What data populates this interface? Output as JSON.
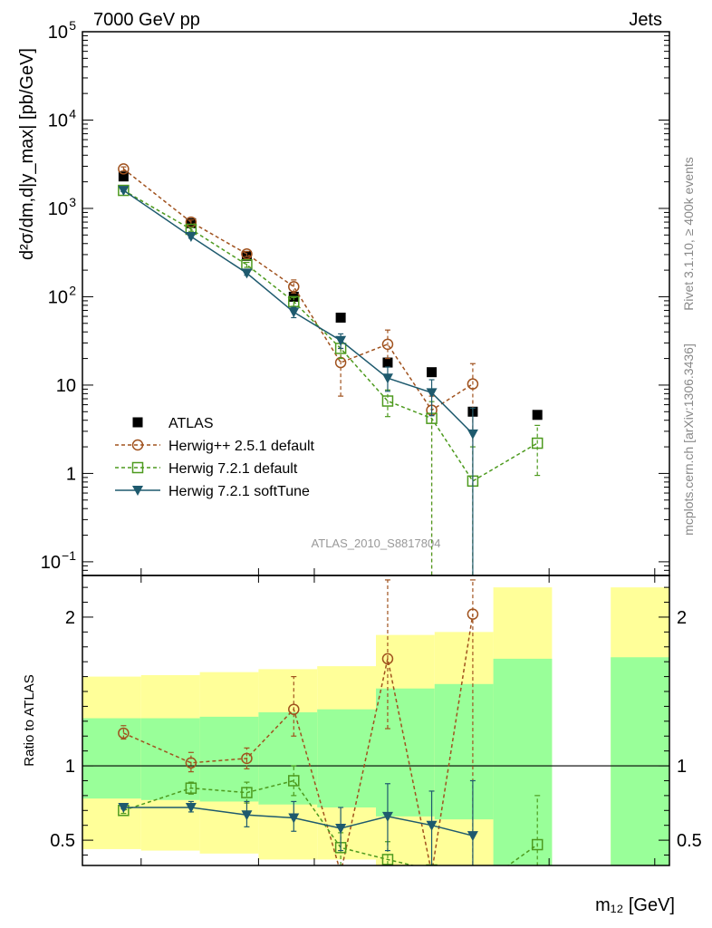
{
  "chart_data": [
    {
      "type": "line",
      "scale": "log",
      "header_left": "7000 GeV pp",
      "header_right": "Jets",
      "ylabel": "d²σ/dm,d|y_max| [pb/GeV]",
      "watermark": "ATLAS_2010_S8817804",
      "ylim": [
        0.07,
        100000
      ],
      "yticks": [
        {
          "value": 0.1,
          "base": "10",
          "exp": "−1",
          "plain": ""
        },
        {
          "value": 1,
          "base": "",
          "exp": "",
          "plain": "1"
        },
        {
          "value": 10,
          "base": "",
          "exp": "",
          "plain": "10"
        },
        {
          "value": 100,
          "base": "10",
          "exp": "2",
          "plain": ""
        },
        {
          "value": 1000,
          "base": "10",
          "exp": "3",
          "plain": ""
        },
        {
          "value": 10000,
          "base": "10",
          "exp": "4",
          "plain": ""
        },
        {
          "value": 100000,
          "base": "10",
          "exp": "5",
          "plain": ""
        }
      ],
      "bins": [
        {
          "lo": 0,
          "hi": 1
        },
        {
          "lo": 1,
          "hi": 2
        },
        {
          "lo": 2,
          "hi": 3
        },
        {
          "lo": 3,
          "hi": 4
        },
        {
          "lo": 4,
          "hi": 5
        },
        {
          "lo": 5,
          "hi": 6
        },
        {
          "lo": 6,
          "hi": 7
        },
        {
          "lo": 7,
          "hi": 8
        },
        {
          "lo": 8,
          "hi": 9
        },
        {
          "lo": 9,
          "hi": 10
        }
      ],
      "x": [
        0.7,
        1.85,
        2.8,
        3.6,
        4.4,
        5.2,
        5.95,
        6.65,
        7.75
      ],
      "series": [
        {
          "name": "ATLAS",
          "style": "data",
          "color": "#000000",
          "values": [
            2300,
            680,
            290,
            100,
            58,
            18,
            14,
            5,
            4.6
          ],
          "err_lo": [
            null,
            null,
            null,
            null,
            null,
            null,
            null,
            null,
            null
          ],
          "err_hi": [
            null,
            null,
            null,
            null,
            null,
            null,
            null,
            null,
            null
          ]
        },
        {
          "name": "Herwig++ 2.5.1 default",
          "style": "circle",
          "color": "#a0521e",
          "values": [
            2800,
            700,
            305,
            130,
            18,
            29,
            5.2,
            10.3,
            null
          ],
          "err_lo": [
            2650,
            660,
            285,
            110,
            7.5,
            20,
            0.06,
            0.06,
            null
          ],
          "err_hi": [
            2950,
            740,
            325,
            155,
            26,
            42,
            7.5,
            17.5,
            null
          ]
        },
        {
          "name": "Herwig 7.2.1 default",
          "style": "square",
          "color": "#4d9a1e",
          "values": [
            1600,
            580,
            230,
            88,
            26,
            6.6,
            4.2,
            0.82,
            2.2
          ],
          "err_lo": [
            1550,
            550,
            215,
            78,
            20,
            4.4,
            0.06,
            0.06,
            0.95
          ],
          "err_hi": [
            1650,
            610,
            245,
            98,
            32,
            8.8,
            6.5,
            2.0,
            3.5
          ]
        },
        {
          "name": "Herwig 7.2.1 softTune",
          "style": "triangle",
          "color": "#1e5a6e",
          "values": [
            1600,
            480,
            185,
            67,
            32,
            12,
            8.2,
            2.8,
            null
          ],
          "err_lo": [
            1550,
            460,
            175,
            58,
            26,
            8.5,
            4.5,
            0.06,
            null
          ],
          "err_hi": [
            1650,
            500,
            195,
            76,
            38,
            16,
            11.5,
            5.5,
            null
          ]
        }
      ]
    },
    {
      "type": "line",
      "scale": "linear",
      "ylabel": "Ratio to ATLAS",
      "xlabel": "m₁₂ [GeV]",
      "ylim": [
        0.33,
        2.28
      ],
      "ytick_values": [
        0.5,
        1,
        2
      ],
      "reference_line": 1,
      "bands": [
        {
          "lo": 0,
          "hi": 1,
          "yellow_lo": 0.44,
          "yellow_hi": 1.6,
          "green_lo": 0.78,
          "green_hi": 1.32
        },
        {
          "lo": 1,
          "hi": 2,
          "yellow_lo": 0.43,
          "yellow_hi": 1.61,
          "green_lo": 0.77,
          "green_hi": 1.32
        },
        {
          "lo": 2,
          "hi": 3,
          "yellow_lo": 0.41,
          "yellow_hi": 1.63,
          "green_lo": 0.76,
          "green_hi": 1.33
        },
        {
          "lo": 3,
          "hi": 4,
          "yellow_lo": 0.37,
          "yellow_hi": 1.65,
          "green_lo": 0.74,
          "green_hi": 1.36
        },
        {
          "lo": 4,
          "hi": 5,
          "yellow_lo": 0.37,
          "yellow_hi": 1.67,
          "green_lo": 0.72,
          "green_hi": 1.38
        },
        {
          "lo": 5,
          "hi": 6,
          "yellow_lo": 0.33,
          "yellow_hi": 1.88,
          "green_lo": 0.66,
          "green_hi": 1.52
        },
        {
          "lo": 6,
          "hi": 7,
          "yellow_lo": 0.33,
          "yellow_hi": 1.9,
          "green_lo": 0.64,
          "green_hi": 1.55
        },
        {
          "lo": 7,
          "hi": 8,
          "yellow_lo": 0.33,
          "yellow_hi": 2.2,
          "green_lo": 0.33,
          "green_hi": 1.72
        },
        {
          "lo": 9,
          "hi": 10,
          "yellow_lo": 0.33,
          "yellow_hi": 2.2,
          "green_lo": 0.33,
          "green_hi": 1.73
        }
      ],
      "series": [
        {
          "name": "Herwig++ 2.5.1 default",
          "style": "circle",
          "color": "#a0521e",
          "values": [
            1.22,
            1.02,
            1.05,
            1.38,
            0.28,
            1.72,
            0.28,
            2.02,
            null
          ],
          "err_lo": [
            1.18,
            0.96,
            0.98,
            1.2,
            0.25,
            1.25,
            0.25,
            0.25,
            null
          ],
          "err_hi": [
            1.27,
            1.09,
            1.12,
            1.6,
            0.25,
            2.25,
            0.25,
            2.25,
            null
          ]
        },
        {
          "name": "Herwig 7.2.1 default",
          "style": "square",
          "color": "#4d9a1e",
          "values": [
            0.7,
            0.85,
            0.82,
            0.9,
            0.45,
            0.37,
            0.3,
            0.16,
            0.47
          ],
          "err_lo": [
            0.68,
            0.81,
            0.75,
            0.8,
            0.33,
            0.25,
            0.25,
            0.16,
            0.2
          ],
          "err_hi": [
            0.72,
            0.89,
            0.89,
            1.0,
            0.55,
            0.49,
            0.25,
            0.16,
            0.8
          ]
        },
        {
          "name": "Herwig 7.2.1 softTune",
          "style": "triangle",
          "color": "#1e5a6e",
          "values": [
            0.72,
            0.72,
            0.67,
            0.65,
            0.58,
            0.66,
            0.6,
            0.53,
            null
          ],
          "err_lo": [
            0.71,
            0.69,
            0.59,
            0.56,
            0.43,
            0.43,
            0.3,
            0.25,
            null
          ],
          "err_hi": [
            0.73,
            0.76,
            0.76,
            0.76,
            0.72,
            0.88,
            0.83,
            0.9,
            null
          ]
        }
      ]
    }
  ],
  "side_labels": {
    "rivet": "Rivet 3.1.10, ≥ 400k events",
    "mcplots": "mcplots.cern.ch [arXiv:1306.3436]"
  }
}
